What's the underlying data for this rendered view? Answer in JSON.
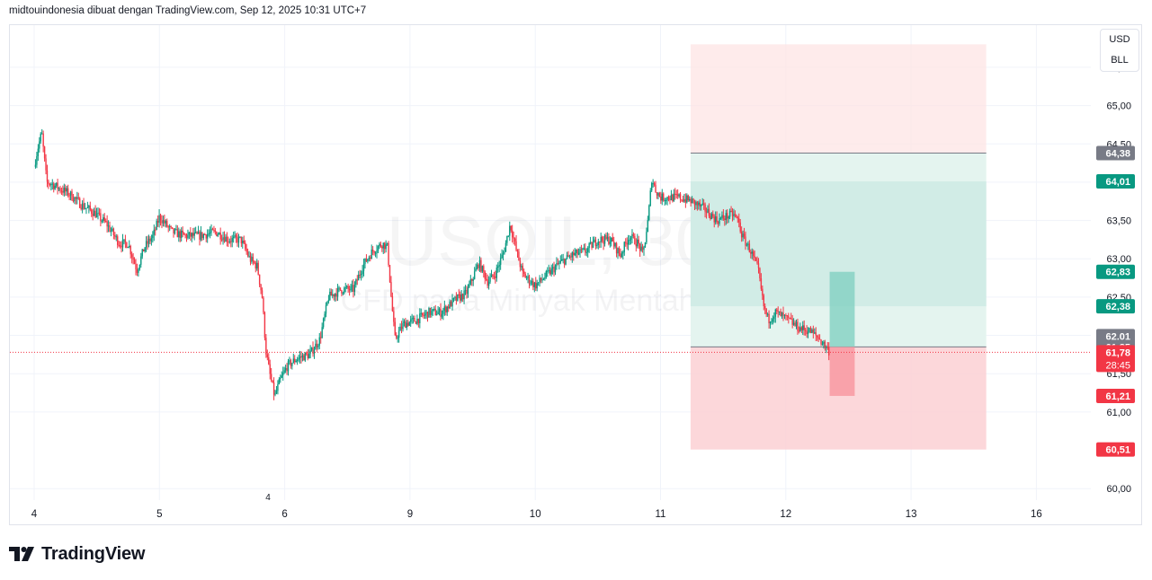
{
  "header": {
    "attribution": "midtouindonesia dibuat dengan TradingView.com, Sep 12, 2025 10:31 UTC+7"
  },
  "watermark": {
    "symbol": "USOIL, 30",
    "description": "CFD pada Minyak Mentah WTI"
  },
  "unit_box": {
    "currency": "USD",
    "unit": "BLL"
  },
  "footer": {
    "brand": "TradingView"
  },
  "colors": {
    "up": "#089981",
    "down": "#f23645",
    "grid": "#f0f3fa",
    "axis_text": "#131722",
    "profit_zone": "#d1ece6",
    "loss_zone": "#fde4e4",
    "neutral_label": "#787b86"
  },
  "chart_data": {
    "type": "candlestick",
    "symbol": "USOIL",
    "timeframe": "30",
    "y_axis": {
      "range": [
        59.85,
        66.05
      ],
      "ticks": [
        "65,50",
        "65,00",
        "64,50",
        "64,00",
        "63,50",
        "63,00",
        "62,50",
        "62,00",
        "61,50",
        "61,00",
        "60,00"
      ],
      "tick_values": [
        65.5,
        65.0,
        64.5,
        64.0,
        63.5,
        63.0,
        62.5,
        62.0,
        61.5,
        61.0,
        60.0
      ]
    },
    "x_axis": {
      "labels": [
        "4",
        "5",
        "6",
        "9",
        "10",
        "11",
        "12",
        "13",
        "16"
      ],
      "extra_marker": "4",
      "range_days": [
        0,
        8.6
      ]
    },
    "price_path": [
      [
        0.0,
        64.2
      ],
      [
        0.03,
        64.45
      ],
      [
        0.06,
        64.65
      ],
      [
        0.1,
        64.0
      ],
      [
        0.14,
        63.98
      ],
      [
        0.2,
        63.92
      ],
      [
        0.28,
        63.85
      ],
      [
        0.38,
        63.7
      ],
      [
        0.48,
        63.6
      ],
      [
        0.58,
        63.45
      ],
      [
        0.68,
        63.2
      ],
      [
        0.75,
        63.2
      ],
      [
        0.82,
        62.85
      ],
      [
        0.88,
        63.15
      ],
      [
        0.95,
        63.3
      ],
      [
        1.0,
        63.55
      ],
      [
        1.05,
        63.45
      ],
      [
        1.1,
        63.35
      ],
      [
        1.2,
        63.3
      ],
      [
        1.32,
        63.3
      ],
      [
        1.45,
        63.35
      ],
      [
        1.55,
        63.25
      ],
      [
        1.65,
        63.25
      ],
      [
        1.72,
        63.0
      ],
      [
        1.78,
        62.9
      ],
      [
        1.82,
        62.5
      ],
      [
        1.85,
        61.8
      ],
      [
        1.88,
        61.5
      ],
      [
        1.92,
        61.2
      ],
      [
        1.96,
        61.4
      ],
      [
        2.02,
        61.6
      ],
      [
        2.1,
        61.7
      ],
      [
        2.2,
        61.75
      ],
      [
        2.28,
        61.95
      ],
      [
        2.35,
        62.5
      ],
      [
        2.45,
        62.6
      ],
      [
        2.55,
        62.6
      ],
      [
        2.62,
        62.9
      ],
      [
        2.7,
        63.1
      ],
      [
        2.78,
        63.2
      ],
      [
        2.82,
        63.15
      ],
      [
        2.85,
        62.5
      ],
      [
        2.88,
        61.95
      ],
      [
        2.95,
        62.15
      ],
      [
        3.05,
        62.2
      ],
      [
        3.15,
        62.3
      ],
      [
        3.25,
        62.3
      ],
      [
        3.35,
        62.45
      ],
      [
        3.45,
        62.55
      ],
      [
        3.55,
        62.95
      ],
      [
        3.62,
        62.7
      ],
      [
        3.68,
        62.8
      ],
      [
        3.75,
        63.1
      ],
      [
        3.8,
        63.45
      ],
      [
        3.85,
        63.1
      ],
      [
        3.9,
        62.8
      ],
      [
        4.0,
        62.65
      ],
      [
        4.1,
        62.8
      ],
      [
        4.2,
        62.95
      ],
      [
        4.3,
        63.05
      ],
      [
        4.4,
        63.1
      ],
      [
        4.5,
        63.25
      ],
      [
        4.6,
        63.25
      ],
      [
        4.68,
        63.05
      ],
      [
        4.75,
        63.3
      ],
      [
        4.82,
        63.2
      ],
      [
        4.86,
        63.05
      ],
      [
        4.9,
        63.5
      ],
      [
        4.93,
        64.05
      ],
      [
        4.96,
        63.9
      ],
      [
        5.0,
        63.8
      ],
      [
        5.08,
        63.8
      ],
      [
        5.15,
        63.8
      ],
      [
        5.25,
        63.75
      ],
      [
        5.35,
        63.65
      ],
      [
        5.45,
        63.5
      ],
      [
        5.52,
        63.55
      ],
      [
        5.58,
        63.58
      ],
      [
        5.62,
        63.5
      ],
      [
        5.65,
        63.3
      ],
      [
        5.72,
        63.1
      ],
      [
        5.78,
        62.85
      ],
      [
        5.82,
        62.4
      ],
      [
        5.86,
        62.2
      ],
      [
        5.92,
        62.3
      ],
      [
        6.02,
        62.2
      ],
      [
        6.1,
        62.1
      ],
      [
        6.2,
        62.05
      ],
      [
        6.27,
        61.95
      ],
      [
        6.32,
        61.85
      ],
      [
        6.35,
        61.78
      ]
    ],
    "positions": [
      {
        "type": "short",
        "entry": 61.85,
        "stop": 64.38,
        "target": 60.51,
        "x_range_days": [
          5.24,
          7.6
        ]
      },
      {
        "type": "long",
        "entry": 62.38,
        "target": 64.01,
        "stop": 61.85,
        "x_range_days": [
          5.24,
          7.6
        ]
      },
      {
        "type": "long",
        "entry": 61.85,
        "target": 62.83,
        "stop": 61.21,
        "x_range_days": [
          6.35,
          6.55
        ]
      }
    ],
    "current_price": 61.78,
    "countdown": "28:45",
    "price_labels": [
      {
        "value": 64.38,
        "text": "64,38",
        "kind": "neutral"
      },
      {
        "value": 64.01,
        "text": "64,01",
        "kind": "up"
      },
      {
        "value": 62.83,
        "text": "62,83",
        "kind": "up"
      },
      {
        "value": 62.38,
        "text": "62,38",
        "kind": "up"
      },
      {
        "value": 62.01,
        "text": "62,01",
        "kind": "neutral"
      },
      {
        "value": 61.85,
        "text": "61,85",
        "kind": "neutral"
      },
      {
        "value": 61.78,
        "text": "61,78",
        "kind": "down"
      },
      {
        "value": 61.21,
        "text": "61,21",
        "kind": "down"
      },
      {
        "value": 60.51,
        "text": "60,51",
        "kind": "down"
      }
    ]
  }
}
